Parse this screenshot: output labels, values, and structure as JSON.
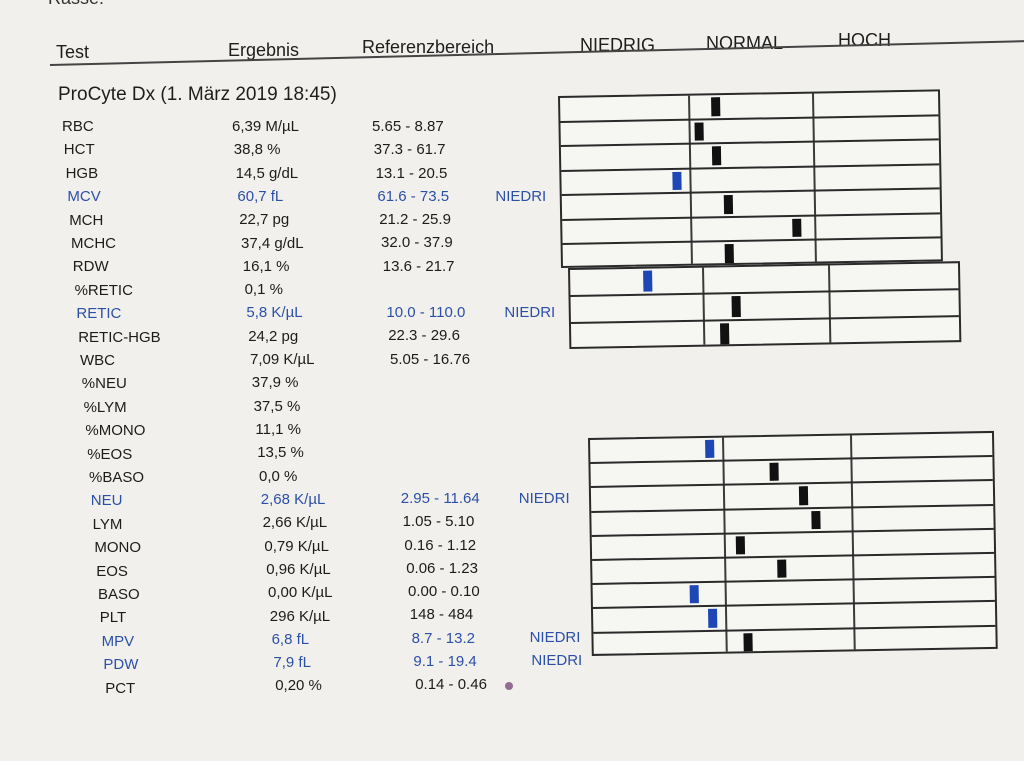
{
  "page_clip_text": "Rasse:",
  "headers": {
    "test": "Test",
    "result": "Ergebnis",
    "reference": "Referenzbereich",
    "low": "NIEDRIG",
    "normal": "NORMAL",
    "high": "HOCH"
  },
  "section_title": "ProCyte Dx (1. März 2019 18:45)",
  "rows": [
    {
      "test": "RBC",
      "result": "6,39 M/µL",
      "ref": "5.65 - 8.87",
      "flag": ""
    },
    {
      "test": "HCT",
      "result": "38,8 %",
      "ref": "37.3 - 61.7",
      "flag": ""
    },
    {
      "test": "HGB",
      "result": "14,5 g/dL",
      "ref": "13.1 - 20.5",
      "flag": ""
    },
    {
      "test": "MCV",
      "result": "60,7 fL",
      "ref": "61.6 - 73.5",
      "flag": "NIEDRI"
    },
    {
      "test": "MCH",
      "result": "22,7 pg",
      "ref": "21.2 - 25.9",
      "flag": ""
    },
    {
      "test": "MCHC",
      "result": "37,4 g/dL",
      "ref": "32.0 - 37.9",
      "flag": ""
    },
    {
      "test": "RDW",
      "result": "16,1 %",
      "ref": "13.6 - 21.7",
      "flag": ""
    },
    {
      "test": "%RETIC",
      "result": "0,1 %",
      "ref": "",
      "flag": ""
    },
    {
      "test": "RETIC",
      "result": "5,8 K/µL",
      "ref": "10.0 - 110.0",
      "flag": "NIEDRI"
    },
    {
      "test": "RETIC-HGB",
      "result": "24,2 pg",
      "ref": "22.3 - 29.6",
      "flag": ""
    },
    {
      "test": "WBC",
      "result": "7,09 K/µL",
      "ref": "5.05 - 16.76",
      "flag": ""
    },
    {
      "test": "%NEU",
      "result": "37,9 %",
      "ref": "",
      "flag": ""
    },
    {
      "test": "%LYM",
      "result": "37,5 %",
      "ref": "",
      "flag": ""
    },
    {
      "test": "%MONO",
      "result": "11,1 %",
      "ref": "",
      "flag": ""
    },
    {
      "test": "%EOS",
      "result": "13,5 %",
      "ref": "",
      "flag": ""
    },
    {
      "test": "%BASO",
      "result": "0,0 %",
      "ref": "",
      "flag": ""
    },
    {
      "test": "NEU",
      "result": "2,68 K/µL",
      "ref": "2.95 - 11.64",
      "flag": "NIEDRI"
    },
    {
      "test": "LYM",
      "result": "2,66 K/µL",
      "ref": "1.05 - 5.10",
      "flag": ""
    },
    {
      "test": "MONO",
      "result": "0,79 K/µL",
      "ref": "0.16 - 1.12",
      "flag": ""
    },
    {
      "test": "EOS",
      "result": "0,96 K/µL",
      "ref": "0.06 - 1.23",
      "flag": ""
    },
    {
      "test": "BASO",
      "result": "0,00 K/µL",
      "ref": "0.00 - 0.10",
      "flag": ""
    },
    {
      "test": "PLT",
      "result": "296 K/µL",
      "ref": "148 - 484",
      "flag": ""
    },
    {
      "test": "MPV",
      "result": "6,8 fL",
      "ref": "8.7 - 13.2",
      "flag": "NIEDRI"
    },
    {
      "test": "PDW",
      "result": "7,9 fL",
      "ref": "9.1 - 19.4",
      "flag": "NIEDRI"
    },
    {
      "test": "PCT",
      "result": "0,20 %",
      "ref": "0.14 - 0.46",
      "flag": ""
    }
  ],
  "gauges": [
    {
      "test": "RBC",
      "zone": "normal",
      "level": 0.2
    },
    {
      "test": "HCT",
      "zone": "normal",
      "level": 0.05
    },
    {
      "test": "HGB",
      "zone": "normal",
      "level": 0.2
    },
    {
      "test": "MCV",
      "zone": "low",
      "level": 0.95
    },
    {
      "test": "MCH",
      "zone": "normal",
      "level": 0.3
    },
    {
      "test": "MCHC",
      "zone": "normal",
      "level": 0.9
    },
    {
      "test": "RDW",
      "zone": "normal",
      "level": 0.3
    },
    {
      "test": "RETIC",
      "zone": "low",
      "level": 0.6
    },
    {
      "test": "RETIC-HGB",
      "zone": "normal",
      "level": 0.25
    },
    {
      "test": "WBC",
      "zone": "normal",
      "level": 0.15
    },
    {
      "test": "NEU",
      "zone": "low",
      "level": 0.95
    },
    {
      "test": "LYM",
      "zone": "normal",
      "level": 0.4
    },
    {
      "test": "MONO",
      "zone": "normal",
      "level": 0.65
    },
    {
      "test": "EOS",
      "zone": "normal",
      "level": 0.75
    },
    {
      "test": "BASO",
      "zone": "normal",
      "level": 0.1
    },
    {
      "test": "PLT",
      "zone": "normal",
      "level": 0.45
    },
    {
      "test": "MPV",
      "zone": "low",
      "level": 0.8
    },
    {
      "test": "PDW",
      "zone": "low",
      "level": 0.95
    },
    {
      "test": "PCT",
      "zone": "normal",
      "level": 0.15
    }
  ],
  "colors": {
    "flag": "#2c4fa8",
    "low_marker": "#1f46b5",
    "marker": "#111111",
    "paper": "#f1f0ec"
  }
}
